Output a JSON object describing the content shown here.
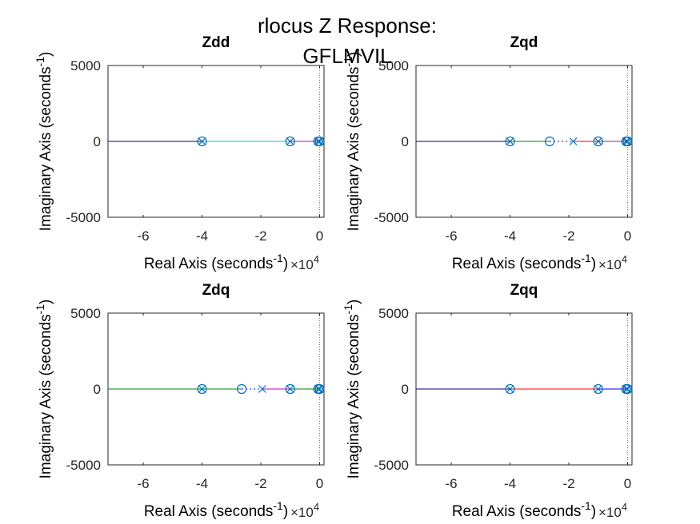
{
  "figure": {
    "suptitle_line1": "rlocus Z Response:",
    "suptitle_line2": "GFLMVIL"
  },
  "colors": {
    "axis": "#262626",
    "markers": "#0072BD",
    "branch_blue": "#0000ff",
    "branch_cyan": "#00c8c8",
    "branch_green": "#008000",
    "branch_red": "#ff0000",
    "branch_magenta": "#c000c0",
    "branch_navy": "#000080"
  },
  "chart_data": [
    {
      "type": "rootlocus",
      "title": "Zdd",
      "xlabel": "Real Axis (seconds",
      "ylabel": "Imaginary Axis (seconds",
      "label_exponent": "-1",
      "xlabel_suffix": ")",
      "ylabel_suffix": ")",
      "x_multiplier": "×10",
      "x_multiplier_exp": "4",
      "xlim": [
        -7.2,
        0.15
      ],
      "ylim": [
        -5000,
        5000
      ],
      "xticks": [
        -6,
        -4,
        -2,
        0
      ],
      "xtick_labels": [
        "-6",
        "-4",
        "-2",
        "0"
      ],
      "yticks": [
        -5000,
        0,
        5000
      ],
      "ytick_labels": [
        "-5000",
        "0",
        "5000"
      ],
      "poles": [
        -4.0,
        -1.0,
        -0.05,
        0.0
      ],
      "zeros": [
        -4.0,
        -1.0,
        -0.05,
        0.0
      ],
      "branches": [
        {
          "color": "#000080",
          "x": [
            -7.2,
            -4.0
          ],
          "y": [
            0,
            0
          ]
        },
        {
          "color": "#00c8c8",
          "x": [
            -4.0,
            -1.0
          ],
          "y": [
            0,
            0
          ]
        },
        {
          "color": "#c000c0",
          "x": [
            -1.0,
            -0.05
          ],
          "y": [
            0,
            0
          ]
        }
      ]
    },
    {
      "type": "rootlocus",
      "title": "Zqd",
      "xlabel": "Real Axis (seconds",
      "ylabel": "Imaginary Axis (seconds",
      "label_exponent": "-1",
      "xlabel_suffix": ")",
      "ylabel_suffix": ")",
      "x_multiplier": "×10",
      "x_multiplier_exp": "4",
      "xlim": [
        -7.2,
        0.15
      ],
      "ylim": [
        -5000,
        5000
      ],
      "xticks": [
        -6,
        -4,
        -2,
        0
      ],
      "xtick_labels": [
        "-6",
        "-4",
        "-2",
        "0"
      ],
      "yticks": [
        -5000,
        0,
        5000
      ],
      "ytick_labels": [
        "-5000",
        "0",
        "5000"
      ],
      "poles": [
        -4.0,
        -1.85,
        -1.0,
        -0.05,
        0.0
      ],
      "zeros": [
        -4.0,
        -2.65,
        -1.0,
        -0.05,
        0.0
      ],
      "branches": [
        {
          "color": "#000080",
          "x": [
            -7.2,
            -4.0
          ],
          "y": [
            0,
            0
          ]
        },
        {
          "color": "#008000",
          "x": [
            -4.0,
            -2.65
          ],
          "y": [
            0,
            0
          ]
        },
        {
          "color": "#0000ff",
          "x": [
            -2.65,
            -1.85
          ],
          "y": [
            0,
            0
          ],
          "dashed": true
        },
        {
          "color": "#ff0000",
          "x": [
            -1.85,
            -1.0
          ],
          "y": [
            0,
            0
          ]
        },
        {
          "color": "#c000c0",
          "x": [
            -1.0,
            -0.05
          ],
          "y": [
            0,
            0
          ]
        }
      ]
    },
    {
      "type": "rootlocus",
      "title": "Zdq",
      "xlabel": "Real Axis (seconds",
      "ylabel": "Imaginary Axis (seconds",
      "label_exponent": "-1",
      "xlabel_suffix": ")",
      "ylabel_suffix": ")",
      "x_multiplier": "×10",
      "x_multiplier_exp": "4",
      "xlim": [
        -7.2,
        0.15
      ],
      "ylim": [
        -5000,
        5000
      ],
      "xticks": [
        -6,
        -4,
        -2,
        0
      ],
      "xtick_labels": [
        "-6",
        "-4",
        "-2",
        "0"
      ],
      "yticks": [
        -5000,
        0,
        5000
      ],
      "ytick_labels": [
        "-5000",
        "0",
        "5000"
      ],
      "poles": [
        -4.0,
        -1.95,
        -1.0,
        -0.05,
        0.0
      ],
      "zeros": [
        -4.0,
        -2.65,
        -1.0,
        -0.05,
        0.0
      ],
      "branches": [
        {
          "color": "#008000",
          "x": [
            -7.2,
            -4.0
          ],
          "y": [
            0,
            0
          ]
        },
        {
          "color": "#008000",
          "x": [
            -4.0,
            -2.65
          ],
          "y": [
            0,
            0
          ]
        },
        {
          "color": "#0000ff",
          "x": [
            -2.65,
            -1.95
          ],
          "y": [
            0,
            0
          ],
          "dashed": true
        },
        {
          "color": "#c000c0",
          "x": [
            -1.95,
            -1.0
          ],
          "y": [
            0,
            0
          ]
        },
        {
          "color": "#008000",
          "x": [
            -1.0,
            -0.05
          ],
          "y": [
            0,
            0
          ]
        }
      ]
    },
    {
      "type": "rootlocus",
      "title": "Zqq",
      "xlabel": "Real Axis (seconds",
      "ylabel": "Imaginary Axis (seconds",
      "label_exponent": "-1",
      "xlabel_suffix": ")",
      "ylabel_suffix": ")",
      "x_multiplier": "×10",
      "x_multiplier_exp": "4",
      "xlim": [
        -7.2,
        0.15
      ],
      "ylim": [
        -5000,
        5000
      ],
      "xticks": [
        -6,
        -4,
        -2,
        0
      ],
      "xtick_labels": [
        "-6",
        "-4",
        "-2",
        "0"
      ],
      "yticks": [
        -5000,
        0,
        5000
      ],
      "ytick_labels": [
        "-5000",
        "0",
        "5000"
      ],
      "poles": [
        -4.0,
        -1.0,
        -0.05,
        0.0
      ],
      "zeros": [
        -4.0,
        -1.0,
        -0.05,
        0.0
      ],
      "branches": [
        {
          "color": "#000080",
          "x": [
            -7.2,
            -4.0
          ],
          "y": [
            0,
            0
          ]
        },
        {
          "color": "#ff0000",
          "x": [
            -4.0,
            -1.0
          ],
          "y": [
            0,
            0
          ]
        },
        {
          "color": "#0000ff",
          "x": [
            -1.0,
            -0.05
          ],
          "y": [
            0,
            0
          ]
        }
      ]
    }
  ]
}
